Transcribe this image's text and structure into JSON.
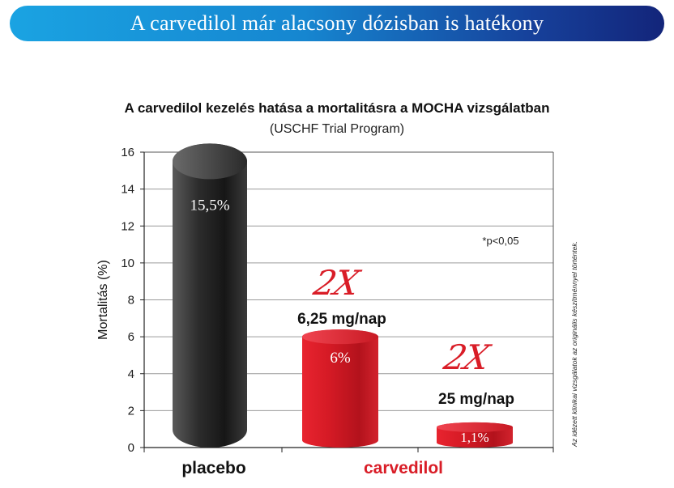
{
  "banner": {
    "title": "A carvedilol már alacsony dózisban is hatékony"
  },
  "side_note": "Az idézett klinikai vizsgálatok az originális készítménnyel történtek.",
  "chart_data": {
    "type": "bar",
    "title": "A carvedilol kezelés hatása a mortalitásra a MOCHA vizsgálatban",
    "subtitle": "(USCHF Trial Program)",
    "ylabel": "Mortalitás (%)",
    "ylim": [
      0,
      16
    ],
    "yticks": [
      0,
      2,
      4,
      6,
      8,
      10,
      12,
      14,
      16
    ],
    "grid": true,
    "bars": [
      {
        "value": 15.5,
        "label": "15,5%",
        "group": "placebo",
        "color": "#2b2b2b"
      },
      {
        "value": 6,
        "label": "6%",
        "group": "carvedilol",
        "color": "#d91d27",
        "dose": "6,25 mg/nap"
      },
      {
        "value": 1.1,
        "label": "1,1%",
        "group": "carvedilol",
        "color": "#d91d27",
        "dose": "25 mg/nap"
      }
    ],
    "groups": [
      {
        "label": "placebo",
        "color": "#111111"
      },
      {
        "label": "carvedilol",
        "color": "#d91d27"
      }
    ],
    "annotations": {
      "significance": "*p<0,05",
      "fold_labels": [
        "2X",
        "2X"
      ]
    }
  }
}
